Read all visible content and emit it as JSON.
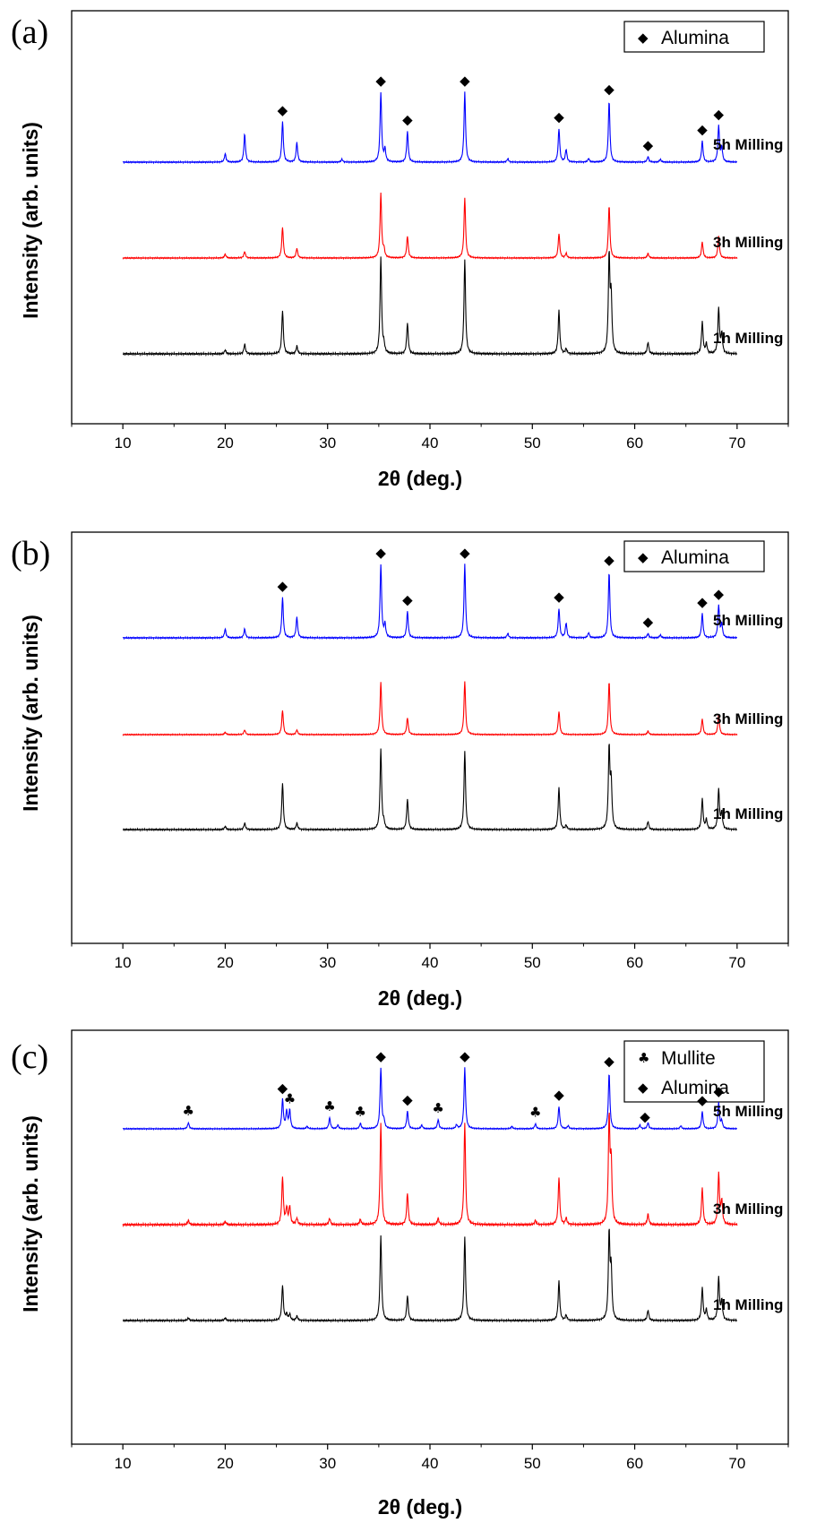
{
  "chart_data": [
    {
      "type": "line",
      "panel_label": "(a)",
      "xlabel": "2θ (deg.)",
      "ylabel": "Intensity (arb. units)",
      "xlim": [
        5,
        75
      ],
      "x_ticks": [
        10,
        20,
        30,
        40,
        50,
        60,
        70
      ],
      "y_ticks_shown": false,
      "legend": {
        "position": "top-right",
        "entries": [
          {
            "symbol": "◆",
            "label": "Alumina"
          }
        ]
      },
      "series": [
        {
          "name": "5h Milling",
          "color": "#0000ff",
          "peaks": [
            [
              20.0,
              0.12
            ],
            [
              21.9,
              0.4
            ],
            [
              25.6,
              0.58
            ],
            [
              27.0,
              0.28
            ],
            [
              31.4,
              0.04
            ],
            [
              35.2,
              1.0
            ],
            [
              35.6,
              0.18
            ],
            [
              37.8,
              0.44
            ],
            [
              43.4,
              1.0
            ],
            [
              47.6,
              0.05
            ],
            [
              52.6,
              0.48
            ],
            [
              53.3,
              0.18
            ],
            [
              55.5,
              0.05
            ],
            [
              57.5,
              0.88
            ],
            [
              61.3,
              0.08
            ],
            [
              62.5,
              0.04
            ],
            [
              66.6,
              0.3
            ],
            [
              68.2,
              0.52
            ],
            [
              68.5,
              0.2
            ]
          ]
        },
        {
          "name": "3h Milling",
          "color": "#ff0000",
          "peaks": [
            [
              20.0,
              0.06
            ],
            [
              21.9,
              0.1
            ],
            [
              25.6,
              0.48
            ],
            [
              27.0,
              0.15
            ],
            [
              35.2,
              1.0
            ],
            [
              35.5,
              0.12
            ],
            [
              37.8,
              0.34
            ],
            [
              43.4,
              0.94
            ],
            [
              52.6,
              0.38
            ],
            [
              53.3,
              0.07
            ],
            [
              57.5,
              0.82
            ],
            [
              61.3,
              0.07
            ],
            [
              66.6,
              0.25
            ],
            [
              68.2,
              0.34
            ]
          ]
        },
        {
          "name": "1h Milling",
          "color": "#000000",
          "peaks": [
            [
              20.0,
              0.04
            ],
            [
              21.9,
              0.1
            ],
            [
              25.6,
              0.45
            ],
            [
              27.0,
              0.08
            ],
            [
              35.2,
              1.0
            ],
            [
              35.5,
              0.08
            ],
            [
              37.8,
              0.32
            ],
            [
              43.4,
              0.98
            ],
            [
              52.6,
              0.45
            ],
            [
              53.3,
              0.05
            ],
            [
              57.5,
              1.0
            ],
            [
              57.7,
              0.55
            ],
            [
              61.3,
              0.12
            ],
            [
              66.6,
              0.33
            ],
            [
              67.0,
              0.1
            ],
            [
              68.2,
              0.47
            ],
            [
              68.5,
              0.2
            ]
          ]
        }
      ],
      "markers": [
        {
          "symbol": "◆",
          "series": "5h Milling",
          "x": [
            25.6,
            35.2,
            37.8,
            43.4,
            52.6,
            57.5,
            61.3,
            66.6,
            68.2
          ]
        }
      ]
    },
    {
      "type": "line",
      "panel_label": "(b)",
      "xlabel": "2θ (deg.)",
      "ylabel": "Intensity (arb. units)",
      "xlim": [
        5,
        75
      ],
      "x_ticks": [
        10,
        20,
        30,
        40,
        50,
        60,
        70
      ],
      "y_ticks_shown": false,
      "legend": {
        "position": "top-right",
        "entries": [
          {
            "symbol": "◆",
            "label": "Alumina"
          }
        ]
      },
      "series": [
        {
          "name": "5h Milling",
          "color": "#0000ff",
          "peaks": [
            [
              20.0,
              0.12
            ],
            [
              21.9,
              0.12
            ],
            [
              25.6,
              0.55
            ],
            [
              27.0,
              0.28
            ],
            [
              35.2,
              1.0
            ],
            [
              35.6,
              0.18
            ],
            [
              37.8,
              0.36
            ],
            [
              43.4,
              1.0
            ],
            [
              47.6,
              0.06
            ],
            [
              52.6,
              0.4
            ],
            [
              53.3,
              0.2
            ],
            [
              55.5,
              0.07
            ],
            [
              57.5,
              0.9
            ],
            [
              61.3,
              0.06
            ],
            [
              62.5,
              0.04
            ],
            [
              66.6,
              0.33
            ],
            [
              68.2,
              0.44
            ],
            [
              68.5,
              0.18
            ]
          ]
        },
        {
          "name": "3h Milling",
          "color": "#ff0000",
          "peaks": [
            [
              20.0,
              0.04
            ],
            [
              21.9,
              0.08
            ],
            [
              25.6,
              0.42
            ],
            [
              27.0,
              0.08
            ],
            [
              35.2,
              0.9
            ],
            [
              37.8,
              0.29
            ],
            [
              43.4,
              0.92
            ],
            [
              52.6,
              0.4
            ],
            [
              57.5,
              0.92
            ],
            [
              61.3,
              0.06
            ],
            [
              66.6,
              0.27
            ],
            [
              68.2,
              0.35
            ]
          ]
        },
        {
          "name": "1h Milling",
          "color": "#000000",
          "peaks": [
            [
              20.0,
              0.04
            ],
            [
              21.9,
              0.08
            ],
            [
              25.6,
              0.58
            ],
            [
              27.0,
              0.08
            ],
            [
              35.2,
              1.0
            ],
            [
              35.5,
              0.07
            ],
            [
              37.8,
              0.38
            ],
            [
              43.4,
              0.98
            ],
            [
              52.6,
              0.52
            ],
            [
              53.3,
              0.05
            ],
            [
              57.5,
              1.0
            ],
            [
              57.7,
              0.55
            ],
            [
              61.3,
              0.1
            ],
            [
              66.6,
              0.38
            ],
            [
              67.0,
              0.12
            ],
            [
              68.2,
              0.5
            ],
            [
              68.5,
              0.2
            ]
          ]
        }
      ],
      "markers": [
        {
          "symbol": "◆",
          "series": "5h Milling",
          "x": [
            25.6,
            35.2,
            37.8,
            43.4,
            52.6,
            57.5,
            61.3,
            66.6,
            68.2
          ]
        }
      ]
    },
    {
      "type": "line",
      "panel_label": "(c)",
      "xlabel": "2θ (deg.)",
      "ylabel": "Intensity (arb. units)",
      "xlim": [
        5,
        75
      ],
      "x_ticks": [
        10,
        20,
        30,
        40,
        50,
        60,
        70
      ],
      "y_ticks_shown": false,
      "legend": {
        "position": "top-right",
        "entries": [
          {
            "symbol": "♣",
            "label": "Mullite"
          },
          {
            "symbol": "◆",
            "label": "Alumina"
          }
        ]
      },
      "series": [
        {
          "name": "5h Milling",
          "color": "#0000ff",
          "peaks": [
            [
              16.4,
              0.1
            ],
            [
              25.6,
              0.48
            ],
            [
              26.0,
              0.28
            ],
            [
              26.3,
              0.3
            ],
            [
              28.0,
              0.04
            ],
            [
              30.2,
              0.18
            ],
            [
              31.0,
              0.06
            ],
            [
              33.2,
              0.09
            ],
            [
              35.2,
              1.0
            ],
            [
              35.5,
              0.12
            ],
            [
              37.8,
              0.29
            ],
            [
              39.2,
              0.06
            ],
            [
              40.8,
              0.15
            ],
            [
              42.6,
              0.06
            ],
            [
              43.4,
              1.0
            ],
            [
              48.0,
              0.04
            ],
            [
              50.3,
              0.08
            ],
            [
              52.6,
              0.37
            ],
            [
              53.5,
              0.05
            ],
            [
              57.5,
              0.92
            ],
            [
              60.5,
              0.06
            ],
            [
              61.3,
              0.1
            ],
            [
              64.5,
              0.05
            ],
            [
              66.6,
              0.28
            ],
            [
              68.2,
              0.43
            ],
            [
              68.5,
              0.12
            ]
          ]
        },
        {
          "name": "3h Milling",
          "color": "#ff0000",
          "peaks": [
            [
              16.4,
              0.04
            ],
            [
              20.0,
              0.03
            ],
            [
              25.6,
              0.45
            ],
            [
              26.0,
              0.15
            ],
            [
              26.3,
              0.17
            ],
            [
              27.0,
              0.06
            ],
            [
              30.2,
              0.06
            ],
            [
              33.2,
              0.05
            ],
            [
              35.2,
              0.96
            ],
            [
              37.8,
              0.3
            ],
            [
              40.8,
              0.06
            ],
            [
              43.4,
              0.97
            ],
            [
              50.3,
              0.04
            ],
            [
              52.6,
              0.45
            ],
            [
              53.3,
              0.06
            ],
            [
              57.5,
              1.0
            ],
            [
              57.7,
              0.55
            ],
            [
              61.3,
              0.1
            ],
            [
              66.6,
              0.35
            ],
            [
              68.2,
              0.48
            ],
            [
              68.5,
              0.22
            ]
          ]
        },
        {
          "name": "1h Milling",
          "color": "#000000",
          "peaks": [
            [
              16.4,
              0.03
            ],
            [
              20.0,
              0.03
            ],
            [
              25.6,
              0.41
            ],
            [
              26.0,
              0.07
            ],
            [
              26.3,
              0.07
            ],
            [
              27.0,
              0.05
            ],
            [
              35.2,
              0.99
            ],
            [
              37.8,
              0.29
            ],
            [
              43.4,
              0.98
            ],
            [
              52.6,
              0.46
            ],
            [
              53.3,
              0.06
            ],
            [
              57.5,
              1.0
            ],
            [
              57.7,
              0.56
            ],
            [
              61.3,
              0.12
            ],
            [
              66.6,
              0.38
            ],
            [
              67.0,
              0.12
            ],
            [
              68.2,
              0.5
            ],
            [
              68.5,
              0.22
            ]
          ]
        }
      ],
      "markers": [
        {
          "symbol": "♣",
          "series": "5h Milling",
          "x": [
            16.4,
            26.3,
            30.2,
            33.2,
            40.8,
            50.3
          ]
        },
        {
          "symbol": "◆",
          "series": "5h Milling",
          "x": [
            25.6,
            35.2,
            37.8,
            43.4,
            52.6,
            57.5,
            61.0,
            66.6,
            68.2
          ]
        }
      ]
    }
  ]
}
